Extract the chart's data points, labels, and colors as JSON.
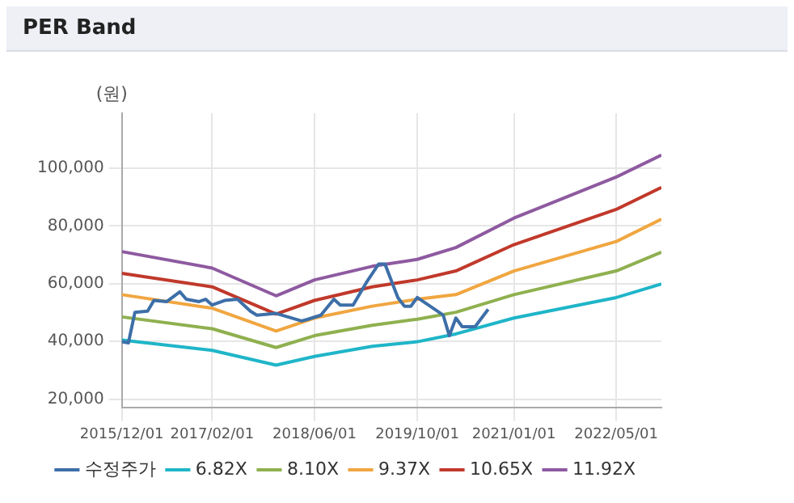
{
  "chart_data": {
    "type": "line",
    "title": "PER Band",
    "ylabel": "(원)",
    "xlim": [
      "2015-12-01",
      "2022-12-01"
    ],
    "xticks": [
      {
        "value": "2015-12-01",
        "label": "2015/12/01"
      },
      {
        "value": "2017-02-01",
        "label": "2017/02/01"
      },
      {
        "value": "2018-06-01",
        "label": "2018/06/01"
      },
      {
        "value": "2019-10-01",
        "label": "2019/10/01"
      },
      {
        "value": "2021-01-01",
        "label": "2021/01/01"
      },
      {
        "value": "2022-05-01",
        "label": "2022/05/01"
      }
    ],
    "ylim": [
      17000,
      119000
    ],
    "yticks": [
      {
        "value": 20000,
        "label": "20,000"
      },
      {
        "value": 40000,
        "label": "40,000"
      },
      {
        "value": 60000,
        "label": "60,000"
      },
      {
        "value": 80000,
        "label": "80,000"
      },
      {
        "value": 100000,
        "label": "100,000"
      }
    ],
    "grid": true,
    "legend": "bottom",
    "marker": "none",
    "line_style": "solid",
    "series": [
      {
        "name": "수정주가",
        "color": "#3d6fa8",
        "x": [
          "2015-12",
          "2016-01",
          "2016-02",
          "2016-04",
          "2016-05",
          "2016-07",
          "2016-09",
          "2016-10",
          "2016-12",
          "2017-01",
          "2017-02",
          "2017-04",
          "2017-06",
          "2017-08",
          "2017-09",
          "2017-12",
          "2018-04",
          "2018-05",
          "2018-07",
          "2018-09",
          "2018-10",
          "2018-12",
          "2019-02",
          "2019-04",
          "2019-05",
          "2019-07",
          "2019-08",
          "2019-09",
          "2019-10",
          "2019-12",
          "2020-02",
          "2020-03",
          "2020-04",
          "2020-05",
          "2020-07",
          "2020-09"
        ],
        "values": [
          39900,
          39500,
          50100,
          50500,
          54200,
          53800,
          57200,
          54600,
          53800,
          54600,
          52600,
          54200,
          54600,
          50500,
          49100,
          49700,
          47100,
          47700,
          49100,
          54600,
          52600,
          52600,
          60300,
          66800,
          66800,
          55200,
          52200,
          52200,
          55200,
          52200,
          49100,
          42000,
          48100,
          45100,
          45100,
          51100
        ]
      },
      {
        "name": "6.82X",
        "color": "#1fb5c8",
        "x": [
          "2015-12",
          "2017-02",
          "2017-12",
          "2018-06",
          "2019-03",
          "2019-10",
          "2020-04",
          "2021-01",
          "2022-05",
          "2022-12"
        ],
        "values": [
          40500,
          36900,
          31800,
          34800,
          38300,
          39900,
          42600,
          48100,
          55200,
          59900
        ]
      },
      {
        "name": "8.10X",
        "color": "#8fb04f",
        "x": [
          "2015-12",
          "2017-02",
          "2017-12",
          "2018-06",
          "2019-03",
          "2019-10",
          "2020-04",
          "2021-01",
          "2022-05",
          "2022-12"
        ],
        "values": [
          48500,
          44400,
          37900,
          42000,
          45600,
          47700,
          50100,
          56200,
          64400,
          70900
        ]
      },
      {
        "name": "9.37X",
        "color": "#f0a640",
        "x": [
          "2015-12",
          "2017-02",
          "2017-12",
          "2018-06",
          "2019-03",
          "2019-10",
          "2020-04",
          "2021-01",
          "2022-05",
          "2022-12"
        ],
        "values": [
          56200,
          51500,
          43600,
          48100,
          52200,
          54600,
          56200,
          64400,
          74600,
          82300
        ]
      },
      {
        "name": "10.65X",
        "color": "#c0392b",
        "x": [
          "2015-12",
          "2017-02",
          "2017-12",
          "2018-06",
          "2019-03",
          "2019-10",
          "2020-04",
          "2021-01",
          "2022-05",
          "2022-12"
        ],
        "values": [
          63600,
          58900,
          49500,
          54200,
          58900,
          61300,
          64400,
          73500,
          85700,
          93300
        ]
      },
      {
        "name": "11.92X",
        "color": "#8e5aa0",
        "x": [
          "2015-12",
          "2017-02",
          "2017-12",
          "2018-06",
          "2019-03",
          "2019-10",
          "2020-04",
          "2021-01",
          "2022-05",
          "2022-12"
        ],
        "values": [
          71100,
          65400,
          55800,
          61300,
          66000,
          68400,
          72500,
          82700,
          96900,
          104500
        ]
      }
    ]
  }
}
